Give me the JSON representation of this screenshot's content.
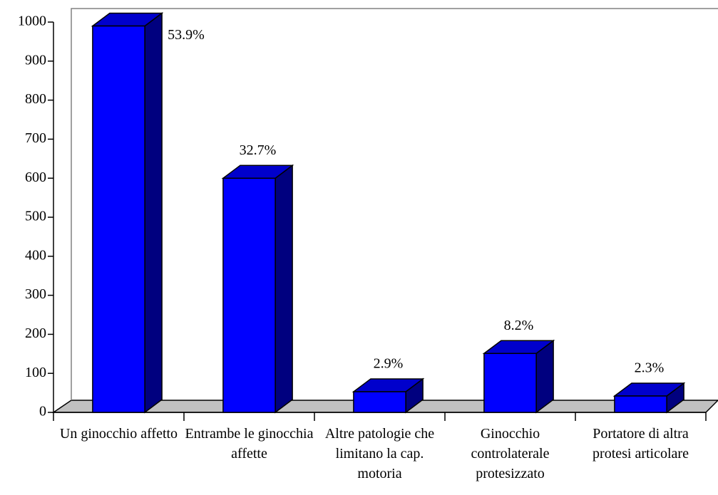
{
  "chart_data": {
    "type": "bar3d",
    "categories": [
      "Un ginocchio affetto",
      "Entrambe le ginocchia affette",
      "Altre patologie che limitano la cap. motoria",
      "Ginocchio controlaterale protesizzato",
      "Portatore di altra protesi articolare"
    ],
    "values": [
      990,
      600,
      53,
      151,
      42
    ],
    "value_labels": [
      "53.9%",
      "32.7%",
      "2.9%",
      "8.2%",
      "2.3%"
    ],
    "color": "#0000ff",
    "ylim": [
      0,
      1000
    ],
    "yticks": [
      0,
      100,
      200,
      300,
      400,
      500,
      600,
      700,
      800,
      900,
      1000
    ],
    "grid": false
  }
}
